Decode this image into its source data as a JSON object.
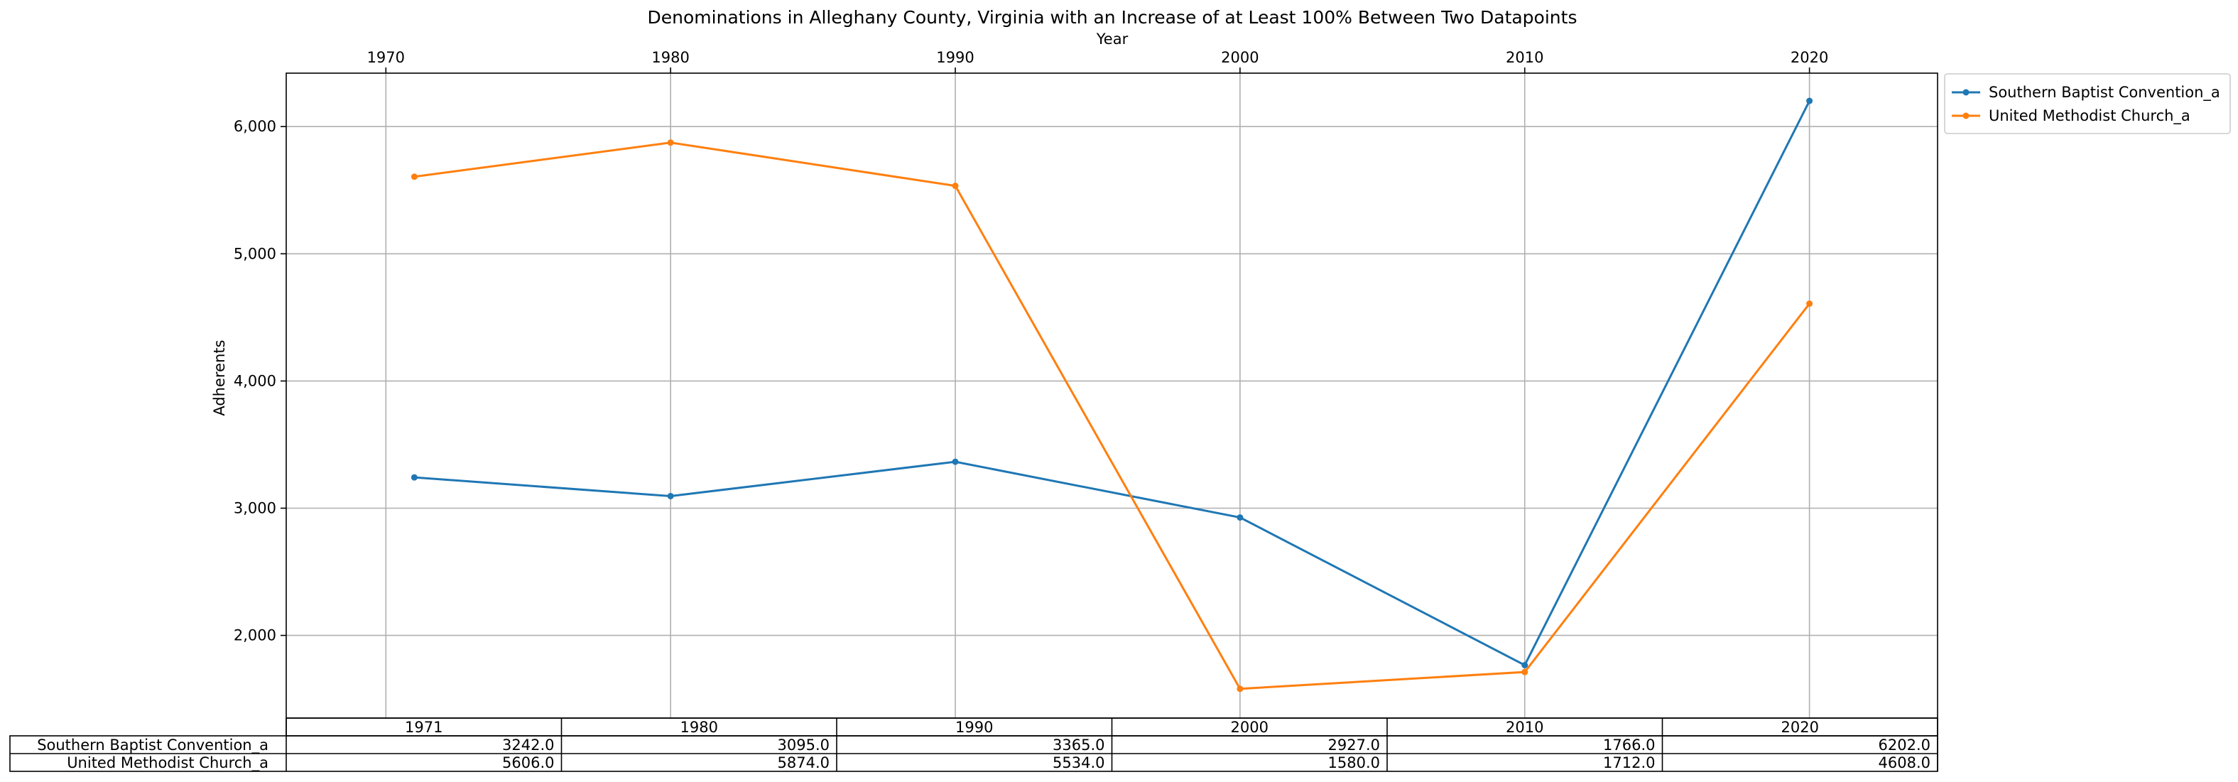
{
  "chart_data": {
    "type": "line",
    "title": "Denominations in Alleghany County, Virginia with an Increase of at Least 100% Between Two Datapoints",
    "xlabel": "Year",
    "ylabel": "Adherents",
    "xlim": [
      1966.5,
      2024.5
    ],
    "ylim": [
      1350,
      6420
    ],
    "x_ticks": [
      1970,
      1980,
      1990,
      2000,
      2010,
      2020
    ],
    "y_ticks": [
      2000,
      3000,
      4000,
      5000,
      6000
    ],
    "y_tick_labels": [
      "2,000",
      "3,000",
      "4,000",
      "5,000",
      "6,000"
    ],
    "grid": true,
    "legend_position": "outside-top-right",
    "x": [
      1971,
      1980,
      1990,
      2000,
      2010,
      2020
    ],
    "series": [
      {
        "name": "Southern Baptist Convention_a",
        "color": "#1f77b4",
        "values": [
          3242,
          3095,
          3365,
          2927,
          1766,
          6202
        ]
      },
      {
        "name": "United Methodist Church_a",
        "color": "#ff7f0e",
        "values": [
          5606,
          5874,
          5534,
          1580,
          1712,
          4608
        ]
      }
    ],
    "table": {
      "columns": [
        "1971",
        "1980",
        "1990",
        "2000",
        "2010",
        "2020"
      ],
      "rows": [
        {
          "label": "Southern Baptist Convention_a",
          "cells": [
            "3242.0",
            "3095.0",
            "3365.0",
            "2927.0",
            "1766.0",
            "6202.0"
          ]
        },
        {
          "label": "United Methodist Church_a",
          "cells": [
            "5606.0",
            "5874.0",
            "5534.0",
            "1580.0",
            "1712.0",
            "4608.0"
          ]
        }
      ]
    }
  }
}
